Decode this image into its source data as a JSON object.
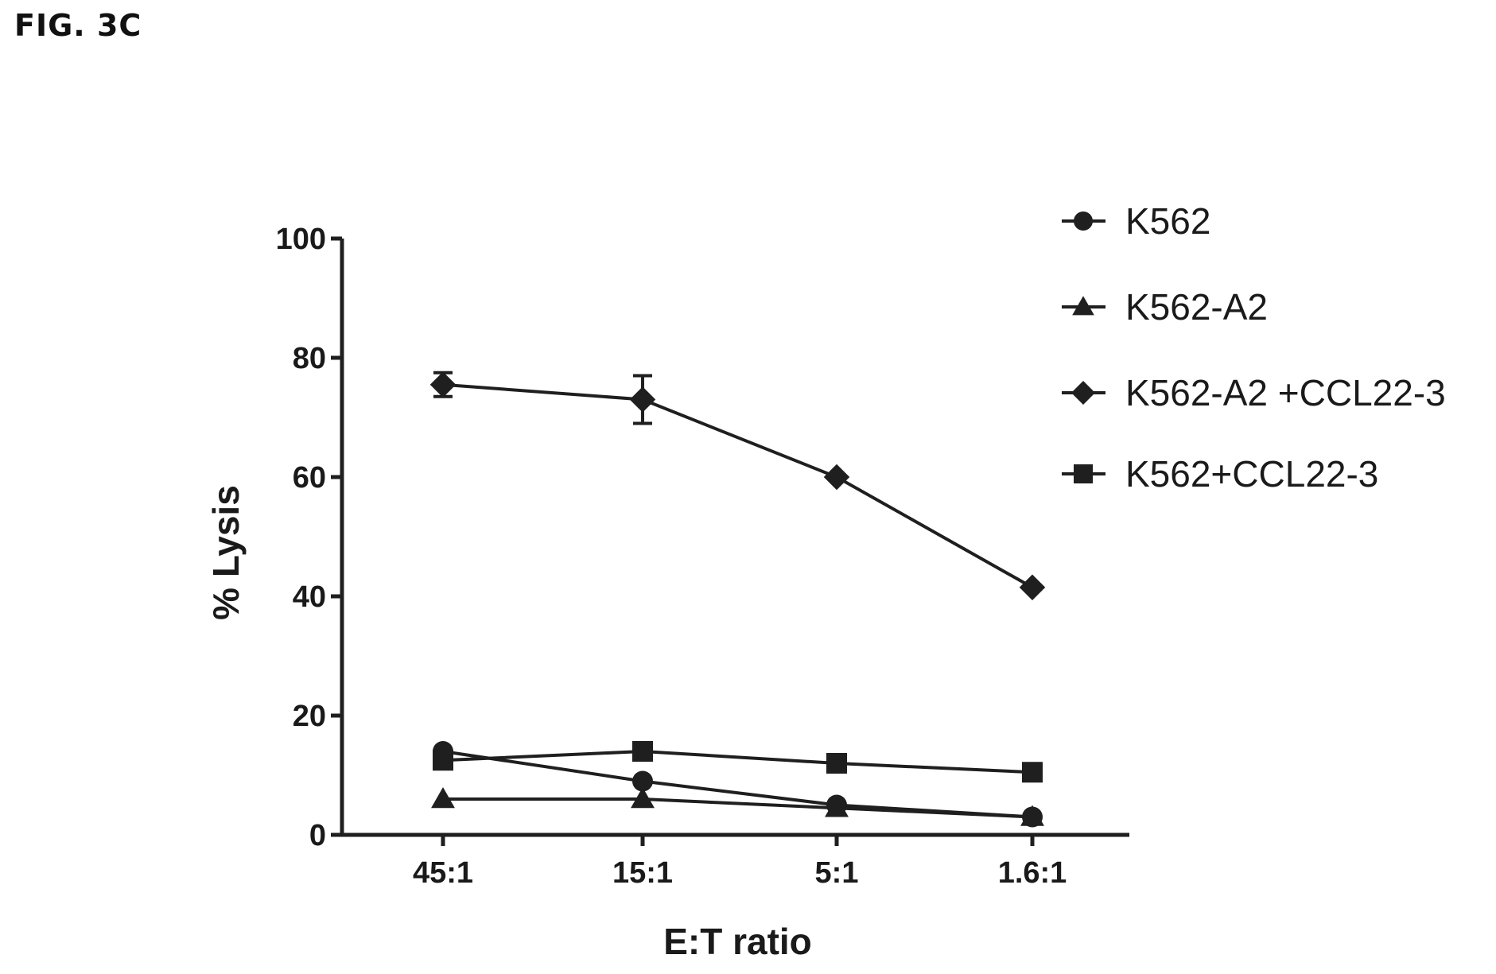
{
  "figure_label": "FIG. 3C",
  "chart_data": {
    "type": "line",
    "categories": [
      "45:1",
      "15:1",
      "5:1",
      "1.6:1"
    ],
    "xlabel": "E:T ratio",
    "ylabel": "% Lysis",
    "ylim": [
      0,
      100
    ],
    "yticks": [
      0,
      20,
      40,
      60,
      80,
      100
    ],
    "grid": false,
    "legend_position": "top-right",
    "series": [
      {
        "name": "K562",
        "marker": "circle",
        "values": [
          14,
          9,
          5,
          3
        ]
      },
      {
        "name": "K562-A2",
        "marker": "triangle",
        "values": [
          6,
          6,
          4.5,
          3
        ]
      },
      {
        "name": "K562-A2 +CCL22-3",
        "marker": "diamond",
        "values": [
          75.5,
          73,
          60,
          41.5
        ],
        "errors": [
          2,
          4,
          0,
          0
        ]
      },
      {
        "name": "K562+CCL22-3",
        "marker": "square",
        "values": [
          12.5,
          14,
          12,
          10.5
        ]
      }
    ]
  }
}
